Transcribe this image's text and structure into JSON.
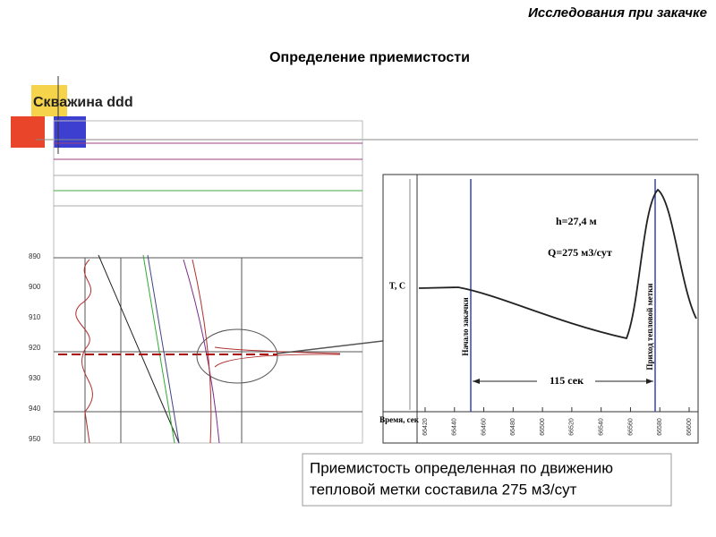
{
  "header": {
    "section": "Исследования при закачке",
    "title": "Определение приемистости",
    "well": "Скважина ddd"
  },
  "log": {
    "depths": [
      "890",
      "900",
      "910",
      "920",
      "930",
      "940",
      "950"
    ]
  },
  "inset": {
    "y_label": "T, C",
    "x_label": "Время, сек",
    "height": "h=27,4 м",
    "rate": "Q=275 м3/сут",
    "start": "Начало закачки",
    "arrival": "Приход тепловой метки",
    "interval": "115 сек",
    "x_ticks": [
      66420,
      66440,
      66460,
      66480,
      66500,
      66520,
      66540,
      66560,
      66580,
      66600
    ]
  },
  "note": {
    "lines": [
      "Приемистость определенная по движению",
      "тепловой метки составила 275 м3/сут"
    ]
  }
}
